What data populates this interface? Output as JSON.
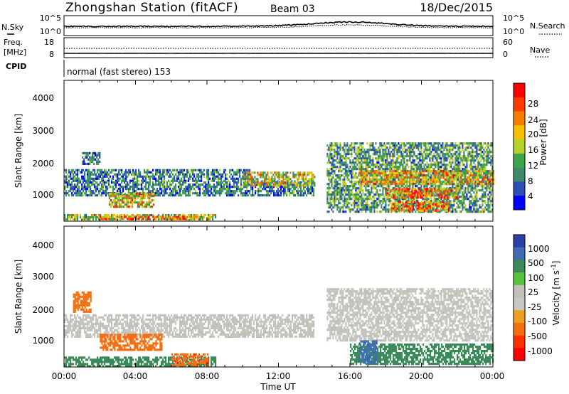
{
  "header": {
    "station": "Zhongshan Station (fitACF)",
    "beam": "Beam 03",
    "date": "18/Dec/2015"
  },
  "aux": {
    "nsky_label": "N.Sky",
    "nsky_ticks": [
      "10^5",
      "10^0"
    ],
    "nsearch_label": "N.Search",
    "nsearch_ticks": [
      "10^5",
      "10^0"
    ],
    "freq_label": "Freq.",
    "freq_unit": "[MHz]",
    "freq_ticks": [
      "18",
      "8"
    ],
    "nave_label": "Nave",
    "nave_ticks": [
      "60",
      "0"
    ],
    "cpid_label": "CPID",
    "cpid_value": "normal (fast stereo) 153"
  },
  "colors": {
    "power_scale": [
      "#0000ff",
      "#2b4fb4",
      "#3f8a6a",
      "#3ea54a",
      "#b5d227",
      "#f5c000",
      "#f77f00",
      "#ff3b00",
      "#ff0000"
    ],
    "velocity_scale": [
      "#2c3fa8",
      "#3f6cb4",
      "#3c8a5a",
      "#59c13b",
      "#c0c0b8",
      "#c8c8c0",
      "#f0a020",
      "#f36f10",
      "#ff3000",
      "#ff0000"
    ]
  },
  "chart_data": [
    {
      "type": "heatmap",
      "name": "power",
      "ylabel": "Slant Range [km]",
      "yticks": [
        "4000",
        "3000",
        "2000",
        "1000"
      ],
      "ylim": [
        180,
        4500
      ],
      "xticks": [
        "00:00",
        "04:00",
        "08:00",
        "12:00",
        "16:00",
        "20:00",
        "00:00"
      ],
      "colorbar": {
        "label": "Power [dB]",
        "ticks": [
          "28",
          "24",
          "20",
          "16",
          "12",
          "8",
          "4"
        ],
        "range": [
          0,
          30
        ]
      },
      "echo_regions": [
        {
          "t0": 0.0,
          "t1": 10.4,
          "r0": 1450,
          "r1": 1780,
          "level": 8
        },
        {
          "t0": 0.0,
          "t1": 14.0,
          "r0": 1000,
          "r1": 1400,
          "level": 8
        },
        {
          "t0": 0.0,
          "t1": 8.5,
          "r0": 230,
          "r1": 400,
          "level": 14
        },
        {
          "t0": 2.0,
          "t1": 7.5,
          "r0": 250,
          "r1": 350,
          "level": 22
        },
        {
          "t0": 2.5,
          "t1": 5.0,
          "r0": 600,
          "r1": 1050,
          "level": 18
        },
        {
          "t0": 1.0,
          "t1": 2.0,
          "r0": 1950,
          "r1": 2300,
          "level": 8
        },
        {
          "t0": 10.0,
          "t1": 14.0,
          "r0": 1300,
          "r1": 1700,
          "level": 16
        },
        {
          "t0": 14.7,
          "t1": 24.0,
          "r0": 500,
          "r1": 2600,
          "level": 10
        },
        {
          "t0": 16.5,
          "t1": 24.0,
          "r0": 1300,
          "r1": 1750,
          "level": 18
        },
        {
          "t0": 18.0,
          "t1": 22.0,
          "r0": 900,
          "r1": 1200,
          "level": 20
        },
        {
          "t0": 18.3,
          "t1": 21.5,
          "r0": 500,
          "r1": 800,
          "level": 22
        }
      ]
    },
    {
      "type": "heatmap",
      "name": "velocity",
      "ylabel": "Slant Range [km]",
      "yticks": [
        "4000",
        "3000",
        "2000",
        "1000"
      ],
      "ylim": [
        180,
        4500
      ],
      "xlabel": "Time UT",
      "xticks": [
        "00:00",
        "04:00",
        "08:00",
        "12:00",
        "16:00",
        "20:00",
        "00:00"
      ],
      "colorbar": {
        "label": "Velocity [m s",
        "label_sup": "-1",
        "label_end": "]",
        "ticks": [
          "1000",
          "500",
          "100",
          "25",
          "-25",
          "-100",
          "-500",
          "-1000"
        ],
        "range": [
          -1000,
          1000
        ]
      },
      "echo_regions": [
        {
          "t0": 0.0,
          "t1": 14.0,
          "r0": 1100,
          "r1": 1800,
          "level": 0
        },
        {
          "t0": 0.0,
          "t1": 8.5,
          "r0": 230,
          "r1": 500,
          "level": 150
        },
        {
          "t0": 2.0,
          "t1": 5.5,
          "r0": 700,
          "r1": 1200,
          "level": -300
        },
        {
          "t0": 6.0,
          "t1": 8.0,
          "r0": 250,
          "r1": 600,
          "level": -400
        },
        {
          "t0": 0.5,
          "t1": 1.5,
          "r0": 1900,
          "r1": 2500,
          "level": -300
        },
        {
          "t0": 14.7,
          "t1": 24.0,
          "r0": 1000,
          "r1": 2600,
          "level": 0
        },
        {
          "t0": 16.0,
          "t1": 24.0,
          "r0": 300,
          "r1": 900,
          "level": 200
        },
        {
          "t0": 16.5,
          "t1": 17.5,
          "r0": 300,
          "r1": 1000,
          "level": 700
        }
      ]
    }
  ]
}
